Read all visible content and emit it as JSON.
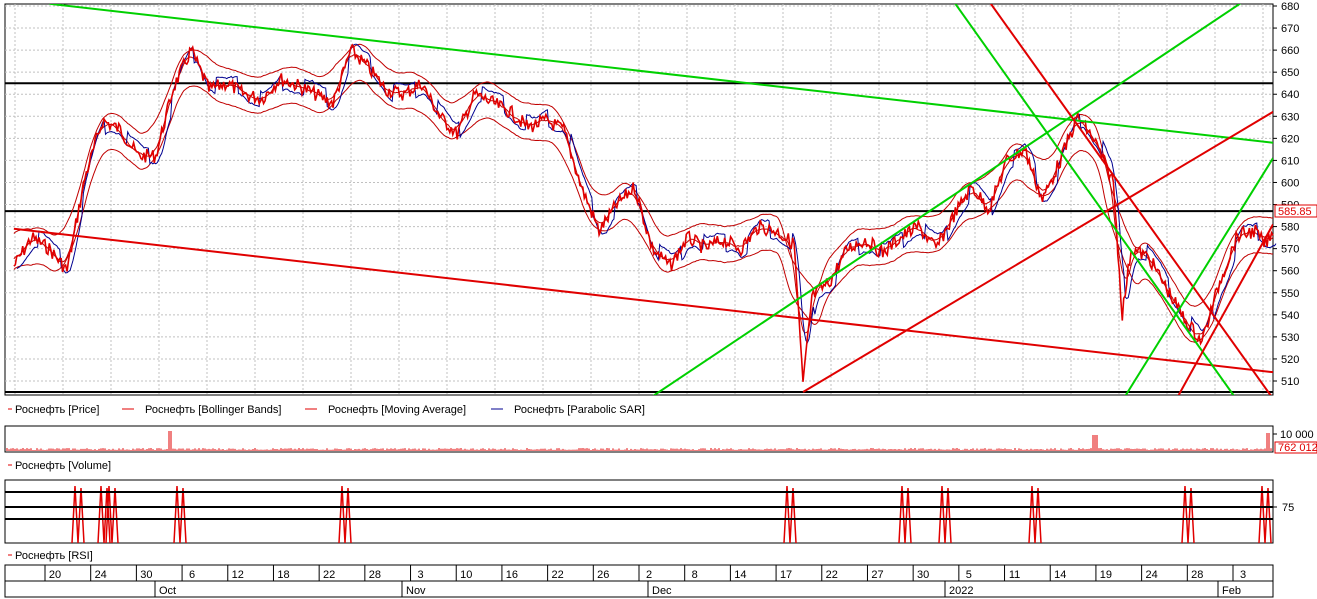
{
  "chart_data": [
    {
      "type": "line",
      "instrument": "Роснефть",
      "ylim": [
        500,
        680
      ],
      "y_ticks": [
        "510",
        "520",
        "530",
        "540",
        "550",
        "560",
        "570",
        "580",
        "590",
        "600",
        "610",
        "620",
        "630",
        "640",
        "650",
        "660",
        "670",
        "680"
      ],
      "grid": true,
      "legend": [
        "Роснефть [Price]",
        "Роснефть [Bollinger Bands]",
        "Роснефть [Moving Average]",
        "Роснефть [Parabolic SAR]"
      ],
      "current_value": "585.85",
      "price_path": [
        [
          "2021-09-16",
          562
        ],
        [
          "2021-09-18",
          575
        ],
        [
          "2021-09-20",
          570
        ],
        [
          "2021-09-22",
          560
        ],
        [
          "2021-09-24",
          602
        ],
        [
          "2021-09-26",
          628
        ],
        [
          "2021-09-28",
          624
        ],
        [
          "2021-09-30",
          612
        ],
        [
          "2021-10-02",
          612
        ],
        [
          "2021-10-04",
          643
        ],
        [
          "2021-10-06",
          660
        ],
        [
          "2021-10-08",
          642
        ],
        [
          "2021-10-10",
          645
        ],
        [
          "2021-10-12",
          640
        ],
        [
          "2021-10-14",
          638
        ],
        [
          "2021-10-16",
          647
        ],
        [
          "2021-10-18",
          644
        ],
        [
          "2021-10-20",
          640
        ],
        [
          "2021-10-22",
          636
        ],
        [
          "2021-10-24",
          660
        ],
        [
          "2021-10-26",
          652
        ],
        [
          "2021-10-28",
          642
        ],
        [
          "2021-10-30",
          640
        ],
        [
          "2021-11-01",
          645
        ],
        [
          "2021-11-03",
          630
        ],
        [
          "2021-11-05",
          622
        ],
        [
          "2021-11-07",
          640
        ],
        [
          "2021-11-09",
          636
        ],
        [
          "2021-11-11",
          632
        ],
        [
          "2021-11-13",
          625
        ],
        [
          "2021-11-15",
          628
        ],
        [
          "2021-11-17",
          624
        ],
        [
          "2021-11-19",
          598
        ],
        [
          "2021-11-21",
          578
        ],
        [
          "2021-11-23",
          590
        ],
        [
          "2021-11-25",
          598
        ],
        [
          "2021-11-27",
          570
        ],
        [
          "2021-11-29",
          562
        ],
        [
          "2021-12-01",
          575
        ],
        [
          "2021-12-03",
          570
        ],
        [
          "2021-12-05",
          574
        ],
        [
          "2021-12-07",
          570
        ],
        [
          "2021-12-09",
          580
        ],
        [
          "2021-12-11",
          578
        ],
        [
          "2021-12-13",
          572
        ],
        [
          "2021-12-14",
          508
        ],
        [
          "2021-12-15",
          548
        ],
        [
          "2021-12-17",
          555
        ],
        [
          "2021-12-19",
          570
        ],
        [
          "2021-12-21",
          574
        ],
        [
          "2021-12-23",
          568
        ],
        [
          "2021-12-25",
          575
        ],
        [
          "2021-12-27",
          580
        ],
        [
          "2021-12-29",
          570
        ],
        [
          "2021-12-31",
          585
        ],
        [
          "2022-01-02",
          598
        ],
        [
          "2022-01-04",
          588
        ],
        [
          "2022-01-06",
          610
        ],
        [
          "2022-01-08",
          615
        ],
        [
          "2022-01-10",
          592
        ],
        [
          "2022-01-12",
          610
        ],
        [
          "2022-01-14",
          630
        ],
        [
          "2022-01-16",
          618
        ],
        [
          "2022-01-18",
          600
        ],
        [
          "2022-01-19",
          540
        ],
        [
          "2022-01-20",
          570
        ],
        [
          "2022-01-22",
          566
        ],
        [
          "2022-01-24",
          552
        ],
        [
          "2022-01-26",
          538
        ],
        [
          "2022-01-28",
          528
        ],
        [
          "2022-01-30",
          555
        ],
        [
          "2022-02-01",
          576
        ],
        [
          "2022-02-03",
          578
        ],
        [
          "2022-02-04",
          572
        ],
        [
          "2022-02-05",
          576
        ]
      ],
      "trend_lines": [
        {
          "color": "#e00000",
          "from": [
            "2021-09-16",
            579
          ],
          "to": [
            "2022-02-05",
            514
          ]
        },
        {
          "color": "#00d000",
          "from": [
            "2021-09-20",
            681
          ],
          "to": [
            "2022-02-05",
            618
          ]
        },
        {
          "color": "#00d000",
          "from": [
            "2021-11-27",
            503
          ],
          "to": [
            "2022-02-02",
            683
          ]
        },
        {
          "color": "#e00000",
          "from": [
            "2021-12-14",
            505
          ],
          "to": [
            "2022-02-05",
            632
          ]
        },
        {
          "color": "#00d000",
          "from": [
            "2021-12-31",
            682
          ],
          "to": [
            "2022-02-01",
            501
          ]
        },
        {
          "color": "#e00000",
          "from": [
            "2022-01-04",
            682
          ],
          "to": [
            "2022-02-05",
            502
          ]
        },
        {
          "color": "#00d000",
          "from": [
            "2022-01-19",
            501
          ],
          "to": [
            "2022-02-05",
            611
          ]
        },
        {
          "color": "#e00000",
          "from": [
            "2022-01-25",
            501
          ],
          "to": [
            "2022-02-05",
            581
          ]
        }
      ],
      "horizontal_levels": [
        505,
        587,
        645
      ]
    },
    {
      "type": "bar",
      "instrument": "Роснефть",
      "legend": [
        "Роснефть [Volume]"
      ],
      "y_ticks": [
        "10 000"
      ],
      "current_value": "762 012"
    },
    {
      "type": "line",
      "instrument": "Роснефть",
      "legend": [
        "Роснефть [RSI]"
      ],
      "y_ticks": [
        "75"
      ],
      "levels": [
        70,
        75,
        80
      ]
    }
  ],
  "x_axis": {
    "day_ticks": [
      "20",
      "24",
      "30",
      "6",
      "12",
      "18",
      "22",
      "28",
      "3",
      "10",
      "16",
      "22",
      "26",
      "2",
      "8",
      "14",
      "17",
      "22",
      "27",
      "30",
      "5",
      "11",
      "14",
      "19",
      "24",
      "28",
      "3"
    ],
    "months": [
      "Oct",
      "Nov",
      "Dec",
      "2022",
      "Feb"
    ]
  },
  "colors": {
    "price": "#e00000",
    "bands": "#c00000",
    "sar": "#000090",
    "support": "#00d000",
    "resistance": "#e00000",
    "level": "#000000"
  }
}
